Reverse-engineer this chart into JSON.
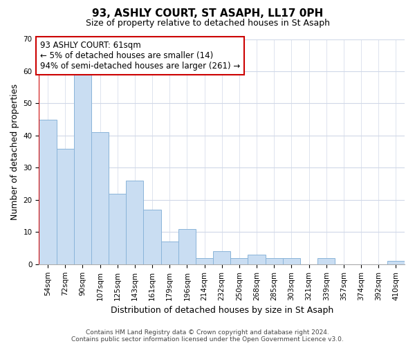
{
  "title": "93, ASHLY COURT, ST ASAPH, LL17 0PH",
  "subtitle": "Size of property relative to detached houses in St Asaph",
  "bar_labels": [
    "54sqm",
    "72sqm",
    "90sqm",
    "107sqm",
    "125sqm",
    "143sqm",
    "161sqm",
    "179sqm",
    "196sqm",
    "214sqm",
    "232sqm",
    "250sqm",
    "268sqm",
    "285sqm",
    "303sqm",
    "321sqm",
    "339sqm",
    "357sqm",
    "374sqm",
    "392sqm",
    "410sqm"
  ],
  "bar_values": [
    45,
    36,
    59,
    41,
    22,
    26,
    17,
    7,
    11,
    2,
    4,
    2,
    3,
    2,
    2,
    0,
    2,
    0,
    0,
    0,
    1
  ],
  "bar_color": "#c9ddf2",
  "bar_edge_color": "#8ab4d9",
  "red_line_color": "#cc0000",
  "ylabel": "Number of detached properties",
  "xlabel": "Distribution of detached houses by size in St Asaph",
  "ylim": [
    0,
    70
  ],
  "yticks": [
    0,
    10,
    20,
    30,
    40,
    50,
    60,
    70
  ],
  "annotation_text_line1": "93 ASHLY COURT: 61sqm",
  "annotation_text_line2": "← 5% of detached houses are smaller (14)",
  "annotation_text_line3": "94% of semi-detached houses are larger (261) →",
  "footer_line1": "Contains HM Land Registry data © Crown copyright and database right 2024.",
  "footer_line2": "Contains public sector information licensed under the Open Government Licence v3.0.",
  "grid_color": "#d0d8e8",
  "background_color": "#ffffff",
  "title_fontsize": 11,
  "subtitle_fontsize": 9,
  "axis_label_fontsize": 9,
  "tick_fontsize": 7.5,
  "annotation_fontsize": 8.5,
  "footer_fontsize": 6.5
}
